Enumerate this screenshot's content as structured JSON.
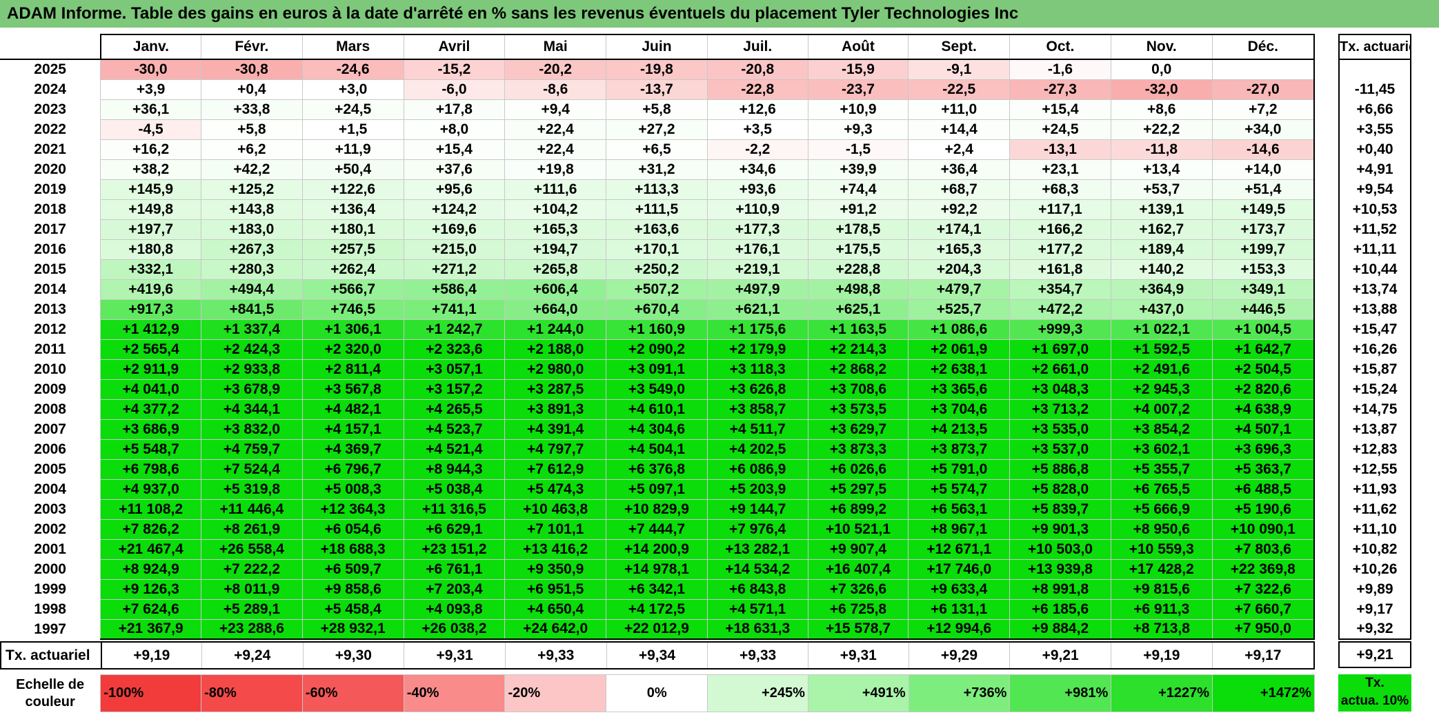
{
  "title": "ADAM Informe. Table des gains en euros à la date d'arrêté en % sans les revenus éventuels du placement Tyler Technologies Inc",
  "months": [
    "Janv.",
    "Févr.",
    "Mars",
    "Avril",
    "Mai",
    "Juin",
    "Juil.",
    "Août",
    "Sept.",
    "Oct.",
    "Nov.",
    "Déc."
  ],
  "tx_header": "Tx. actuariel",
  "rows": [
    {
      "year": "2025",
      "values": [
        "-30,0",
        "-30,8",
        "-24,6",
        "-15,2",
        "-20,2",
        "-19,8",
        "-20,8",
        "-15,9",
        "-9,1",
        "-1,6",
        "0,0",
        ""
      ],
      "tx": ""
    },
    {
      "year": "2024",
      "values": [
        "+3,9",
        "+0,4",
        "+3,0",
        "-6,0",
        "-8,6",
        "-13,7",
        "-22,8",
        "-23,7",
        "-22,5",
        "-27,3",
        "-32,0",
        "-27,0"
      ],
      "tx": "-11,45"
    },
    {
      "year": "2023",
      "values": [
        "+36,1",
        "+33,8",
        "+24,5",
        "+17,8",
        "+9,4",
        "+5,8",
        "+12,6",
        "+10,9",
        "+11,0",
        "+15,4",
        "+8,6",
        "+7,2"
      ],
      "tx": "+6,66"
    },
    {
      "year": "2022",
      "values": [
        "-4,5",
        "+5,8",
        "+1,5",
        "+8,0",
        "+22,4",
        "+27,2",
        "+3,5",
        "+9,3",
        "+14,4",
        "+24,5",
        "+22,2",
        "+34,0"
      ],
      "tx": "+3,55"
    },
    {
      "year": "2021",
      "values": [
        "+16,2",
        "+6,2",
        "+11,9",
        "+15,4",
        "+22,4",
        "+6,5",
        "-2,2",
        "-1,5",
        "+2,4",
        "-13,1",
        "-11,8",
        "-14,6"
      ],
      "tx": "+0,40"
    },
    {
      "year": "2020",
      "values": [
        "+38,2",
        "+42,2",
        "+50,4",
        "+37,6",
        "+19,8",
        "+31,2",
        "+34,6",
        "+39,9",
        "+36,4",
        "+23,1",
        "+13,4",
        "+14,0"
      ],
      "tx": "+4,91"
    },
    {
      "year": "2019",
      "values": [
        "+145,9",
        "+125,2",
        "+122,6",
        "+95,6",
        "+111,6",
        "+113,3",
        "+93,6",
        "+74,4",
        "+68,7",
        "+68,3",
        "+53,7",
        "+51,4"
      ],
      "tx": "+9,54"
    },
    {
      "year": "2018",
      "values": [
        "+149,8",
        "+143,8",
        "+136,4",
        "+124,2",
        "+104,2",
        "+111,5",
        "+110,9",
        "+91,2",
        "+92,2",
        "+117,1",
        "+139,1",
        "+149,5"
      ],
      "tx": "+10,53"
    },
    {
      "year": "2017",
      "values": [
        "+197,7",
        "+183,0",
        "+180,1",
        "+169,6",
        "+165,3",
        "+163,6",
        "+177,3",
        "+178,5",
        "+174,1",
        "+166,2",
        "+162,7",
        "+173,7"
      ],
      "tx": "+11,52"
    },
    {
      "year": "2016",
      "values": [
        "+180,8",
        "+267,3",
        "+257,5",
        "+215,0",
        "+194,7",
        "+170,1",
        "+176,1",
        "+175,5",
        "+165,3",
        "+177,2",
        "+189,4",
        "+199,7"
      ],
      "tx": "+11,11"
    },
    {
      "year": "2015",
      "values": [
        "+332,1",
        "+280,3",
        "+262,4",
        "+271,2",
        "+265,8",
        "+250,2",
        "+219,1",
        "+228,8",
        "+204,3",
        "+161,8",
        "+140,2",
        "+153,3"
      ],
      "tx": "+10,44"
    },
    {
      "year": "2014",
      "values": [
        "+419,6",
        "+494,4",
        "+566,7",
        "+586,4",
        "+606,4",
        "+507,2",
        "+497,9",
        "+498,8",
        "+479,7",
        "+354,7",
        "+364,9",
        "+349,1"
      ],
      "tx": "+13,74"
    },
    {
      "year": "2013",
      "values": [
        "+917,3",
        "+841,5",
        "+746,5",
        "+741,1",
        "+664,0",
        "+670,4",
        "+621,1",
        "+625,1",
        "+525,7",
        "+472,2",
        "+437,0",
        "+446,5"
      ],
      "tx": "+13,88"
    },
    {
      "year": "2012",
      "values": [
        "+1 412,9",
        "+1 337,4",
        "+1 306,1",
        "+1 242,7",
        "+1 244,0",
        "+1 160,9",
        "+1 175,6",
        "+1 163,5",
        "+1 086,6",
        "+999,3",
        "+1 022,1",
        "+1 004,5"
      ],
      "tx": "+15,47"
    },
    {
      "year": "2011",
      "values": [
        "+2 565,4",
        "+2 424,3",
        "+2 320,0",
        "+2 323,6",
        "+2 188,0",
        "+2 090,2",
        "+2 179,9",
        "+2 214,3",
        "+2 061,9",
        "+1 697,0",
        "+1 592,5",
        "+1 642,7"
      ],
      "tx": "+16,26"
    },
    {
      "year": "2010",
      "values": [
        "+2 911,9",
        "+2 933,8",
        "+2 811,4",
        "+3 057,1",
        "+2 980,0",
        "+3 091,1",
        "+3 118,3",
        "+2 868,2",
        "+2 638,1",
        "+2 661,0",
        "+2 491,6",
        "+2 504,5"
      ],
      "tx": "+15,87"
    },
    {
      "year": "2009",
      "values": [
        "+4 041,0",
        "+3 678,9",
        "+3 567,8",
        "+3 157,2",
        "+3 287,5",
        "+3 549,0",
        "+3 626,8",
        "+3 708,6",
        "+3 365,6",
        "+3 048,3",
        "+2 945,3",
        "+2 820,6"
      ],
      "tx": "+15,24"
    },
    {
      "year": "2008",
      "values": [
        "+4 377,2",
        "+4 344,1",
        "+4 482,1",
        "+4 265,5",
        "+3 891,3",
        "+4 610,1",
        "+3 858,7",
        "+3 573,5",
        "+3 704,6",
        "+3 713,2",
        "+4 007,2",
        "+4 638,9"
      ],
      "tx": "+14,75"
    },
    {
      "year": "2007",
      "values": [
        "+3 686,9",
        "+3 832,0",
        "+4 157,1",
        "+4 523,7",
        "+4 391,4",
        "+4 304,6",
        "+4 511,7",
        "+3 629,7",
        "+4 213,5",
        "+3 535,0",
        "+3 854,2",
        "+4 507,1"
      ],
      "tx": "+13,87"
    },
    {
      "year": "2006",
      "values": [
        "+5 548,7",
        "+4 759,7",
        "+4 369,7",
        "+4 521,4",
        "+4 797,7",
        "+4 504,1",
        "+4 202,5",
        "+3 873,3",
        "+3 873,7",
        "+3 537,0",
        "+3 602,1",
        "+3 696,3"
      ],
      "tx": "+12,83"
    },
    {
      "year": "2005",
      "values": [
        "+6 798,6",
        "+7 524,4",
        "+6 796,7",
        "+8 944,3",
        "+7 612,9",
        "+6 376,8",
        "+6 086,9",
        "+6 026,6",
        "+5 791,0",
        "+5 886,8",
        "+5 355,7",
        "+5 363,7"
      ],
      "tx": "+12,55"
    },
    {
      "year": "2004",
      "values": [
        "+4 937,0",
        "+5 319,8",
        "+5 008,3",
        "+5 038,4",
        "+5 474,3",
        "+5 097,1",
        "+5 203,9",
        "+5 297,5",
        "+5 574,7",
        "+5 828,0",
        "+6 765,5",
        "+6 488,5"
      ],
      "tx": "+11,93"
    },
    {
      "year": "2003",
      "values": [
        "+11 108,2",
        "+11 446,4",
        "+12 364,3",
        "+11 316,5",
        "+10 463,8",
        "+10 829,9",
        "+9 144,7",
        "+6 899,2",
        "+6 563,1",
        "+5 839,7",
        "+5 666,9",
        "+5 190,6"
      ],
      "tx": "+11,62"
    },
    {
      "year": "2002",
      "values": [
        "+7 826,2",
        "+8 261,9",
        "+6 054,6",
        "+6 629,1",
        "+7 101,1",
        "+7 444,7",
        "+7 976,4",
        "+10 521,1",
        "+8 967,1",
        "+9 901,3",
        "+8 950,6",
        "+10 090,1"
      ],
      "tx": "+11,10"
    },
    {
      "year": "2001",
      "values": [
        "+21 467,4",
        "+26 558,4",
        "+18 688,3",
        "+23 151,2",
        "+13 416,2",
        "+14 200,9",
        "+13 282,1",
        "+9 907,4",
        "+12 671,1",
        "+10 503,0",
        "+10 559,3",
        "+7 803,6"
      ],
      "tx": "+10,82"
    },
    {
      "year": "2000",
      "values": [
        "+8 924,9",
        "+7 222,2",
        "+6 509,7",
        "+6 761,1",
        "+9 350,9",
        "+14 978,1",
        "+14 534,2",
        "+16 407,4",
        "+17 746,0",
        "+13 939,8",
        "+17 428,2",
        "+22 369,8"
      ],
      "tx": "+10,26"
    },
    {
      "year": "1999",
      "values": [
        "+9 126,3",
        "+8 011,9",
        "+9 858,6",
        "+7 203,4",
        "+6 951,5",
        "+6 342,1",
        "+6 843,8",
        "+7 326,6",
        "+9 633,4",
        "+8 991,8",
        "+9 815,6",
        "+7 322,6"
      ],
      "tx": "+9,89"
    },
    {
      "year": "1998",
      "values": [
        "+7 624,6",
        "+5 289,1",
        "+5 458,4",
        "+4 093,8",
        "+4 650,4",
        "+4 172,5",
        "+4 571,1",
        "+6 725,8",
        "+6 131,1",
        "+6 185,6",
        "+6 911,3",
        "+7 660,7"
      ],
      "tx": "+9,17"
    },
    {
      "year": "1997",
      "values": [
        "+21 367,9",
        "+23 288,6",
        "+28 932,1",
        "+26 038,2",
        "+24 642,0",
        "+22 012,9",
        "+18 631,3",
        "+15 578,7",
        "+12 994,6",
        "+9 884,2",
        "+8 713,8",
        "+7 950,0"
      ],
      "tx": "+9,32"
    }
  ],
  "footer": {
    "label": "Tx. actuariel",
    "values": [
      "+9,19",
      "+9,24",
      "+9,30",
      "+9,31",
      "+9,33",
      "+9,34",
      "+9,33",
      "+9,31",
      "+9,29",
      "+9,21",
      "+9,19",
      "+9,17"
    ],
    "tx": "+9,21"
  },
  "scale": {
    "label_line1": "Echelle de",
    "label_line2": "couleur",
    "steps": [
      {
        "text": "-100%",
        "color": "#f23c3c"
      },
      {
        "text": "-80%",
        "color": "#f44a4a"
      },
      {
        "text": "-60%",
        "color": "#f55858"
      },
      {
        "text": "-40%",
        "color": "#f98b8b"
      },
      {
        "text": "-20%",
        "color": "#fcc6c6"
      },
      {
        "text": "0%",
        "color": "#ffffff"
      },
      {
        "text": "+245%",
        "color": "#d3f9d3"
      },
      {
        "text": "+491%",
        "color": "#a9f4a9"
      },
      {
        "text": "+736%",
        "color": "#7dee7d"
      },
      {
        "text": "+981%",
        "color": "#52e652"
      },
      {
        "text": "+1227%",
        "color": "#2ce02c"
      },
      {
        "text": "+1472%",
        "color": "#0add0a"
      }
    ],
    "tx_line1": "Tx.",
    "tx_line2": "actua. 10%",
    "tx_color": "#0add0a"
  },
  "colors": {
    "title_bg": "#7dc87a"
  }
}
